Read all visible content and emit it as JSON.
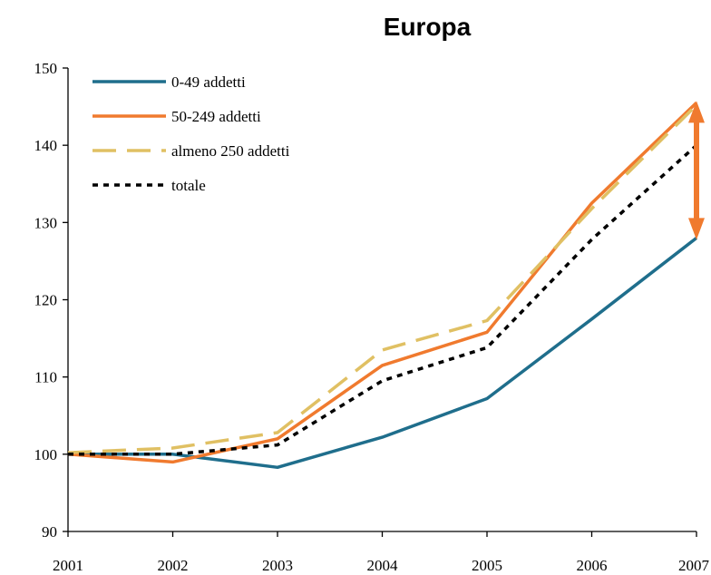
{
  "chart_data": {
    "type": "line",
    "title": "Europa",
    "xlabel": "",
    "ylabel": "",
    "x": [
      "2001",
      "2002",
      "2003",
      "2004",
      "2005",
      "2006",
      "2007"
    ],
    "ylim": [
      90,
      150
    ],
    "yticks": [
      "90",
      "100",
      "110",
      "120",
      "130",
      "140",
      "150"
    ],
    "grid": false,
    "legend_position": "top-left",
    "series": [
      {
        "name": "0-49 addetti",
        "color": "#1f6e8c",
        "dash": "solid",
        "values": [
          100,
          100,
          98.3,
          102.2,
          107.2,
          117.5,
          128
        ]
      },
      {
        "name": "50-249 addetti",
        "color": "#f07a2e",
        "dash": "solid",
        "values": [
          100,
          99,
          102,
          111.5,
          115.8,
          132.5,
          145.5
        ]
      },
      {
        "name": "almeno 250 addetti",
        "color": "#e0c063",
        "dash": "long-dash",
        "values": [
          100.2,
          100.8,
          102.8,
          113.5,
          117.3,
          131.8,
          145.2
        ]
      },
      {
        "name": "totale",
        "color": "#000000",
        "dash": "dotted",
        "values": [
          100,
          100,
          101.2,
          109.5,
          113.8,
          127.8,
          140
        ]
      }
    ],
    "annotation": {
      "type": "double-arrow",
      "x": "2007",
      "from": 128,
      "to": 145.5,
      "color": "#f07a2e"
    }
  }
}
